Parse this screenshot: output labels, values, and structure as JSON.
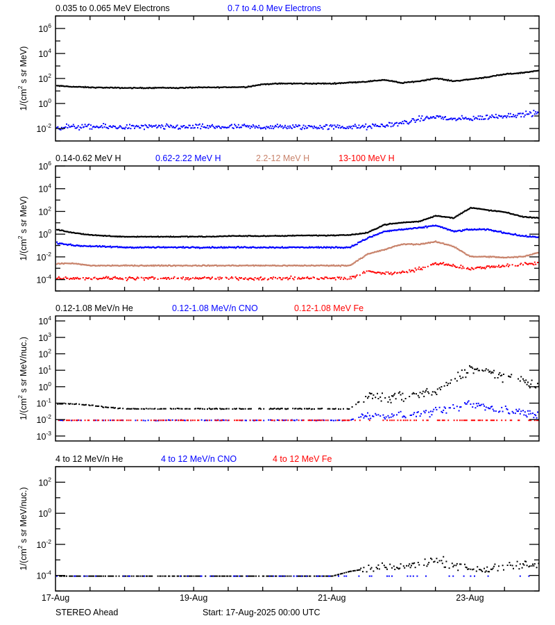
{
  "footer": {
    "spacecraft": "STEREO Ahead",
    "start": "Start: 17-Aug-2025 00:00 UTC"
  },
  "chart_data": [
    {
      "type": "scatter",
      "yscale": "log",
      "ylim": [
        0.001,
        10000000.0
      ],
      "xlim": [
        "2025-08-17T00:00",
        "2025-08-24T00:00"
      ],
      "ylabel": "1/(cm2 s sr MeV)",
      "ylabel_main": "1/(cm",
      "ylabel_sup": "2",
      "ylabel_rest": " s sr MeV)",
      "ytick_exponents": [
        6,
        4,
        2,
        0,
        -2
      ],
      "x": [
        "2025-08-17T00:00",
        "2025-08-17T06:00",
        "2025-08-17T12:00",
        "2025-08-17T18:00",
        "2025-08-18T00:00",
        "2025-08-18T06:00",
        "2025-08-18T12:00",
        "2025-08-18T18:00",
        "2025-08-19T00:00",
        "2025-08-19T06:00",
        "2025-08-19T12:00",
        "2025-08-19T18:00",
        "2025-08-20T00:00",
        "2025-08-20T06:00",
        "2025-08-20T12:00",
        "2025-08-20T18:00",
        "2025-08-21T00:00",
        "2025-08-21T06:00",
        "2025-08-21T12:00",
        "2025-08-21T18:00",
        "2025-08-22T00:00",
        "2025-08-22T06:00",
        "2025-08-22T12:00",
        "2025-08-22T18:00",
        "2025-08-23T00:00",
        "2025-08-23T06:00",
        "2025-08-23T12:00",
        "2025-08-23T18:00",
        "2025-08-24T00:00"
      ],
      "series": [
        {
          "name": "0.035 to 0.065 MeV Electrons",
          "color": "#000000",
          "values": [
            30,
            25,
            22,
            21,
            20,
            20,
            21,
            20,
            22,
            22,
            23,
            24,
            40,
            45,
            45,
            45,
            45,
            55,
            65,
            90,
            50,
            70,
            120,
            70,
            100,
            150,
            250,
            330,
            500
          ]
        },
        {
          "name": "0.7 to 4.0 Mev Electrons",
          "color": "#0000ff",
          "values": [
            0.015,
            0.015,
            0.015,
            0.015,
            0.015,
            0.015,
            0.015,
            0.015,
            0.015,
            0.015,
            0.015,
            0.015,
            0.015,
            0.015,
            0.015,
            0.015,
            0.015,
            0.015,
            0.015,
            0.02,
            0.03,
            0.06,
            0.1,
            0.06,
            0.07,
            0.09,
            0.12,
            0.15,
            0.2
          ]
        }
      ]
    },
    {
      "type": "scatter",
      "yscale": "log",
      "ylim": [
        1e-05,
        1000000.0
      ],
      "xlim": [
        "2025-08-17T00:00",
        "2025-08-24T00:00"
      ],
      "ylabel": "1/(cm2 s sr MeV)",
      "ylabel_main": "1/(cm",
      "ylabel_sup": "2",
      "ylabel_rest": " s sr MeV)",
      "ytick_exponents": [
        6,
        4,
        2,
        0,
        -2,
        -4
      ],
      "x": [
        "2025-08-17T00:00",
        "2025-08-17T06:00",
        "2025-08-17T12:00",
        "2025-08-17T18:00",
        "2025-08-18T00:00",
        "2025-08-18T06:00",
        "2025-08-18T12:00",
        "2025-08-18T18:00",
        "2025-08-19T00:00",
        "2025-08-19T06:00",
        "2025-08-19T12:00",
        "2025-08-19T18:00",
        "2025-08-20T00:00",
        "2025-08-20T06:00",
        "2025-08-20T12:00",
        "2025-08-20T18:00",
        "2025-08-21T00:00",
        "2025-08-21T06:00",
        "2025-08-21T12:00",
        "2025-08-21T18:00",
        "2025-08-22T00:00",
        "2025-08-22T06:00",
        "2025-08-22T12:00",
        "2025-08-22T18:00",
        "2025-08-23T00:00",
        "2025-08-23T06:00",
        "2025-08-23T12:00",
        "2025-08-23T18:00",
        "2025-08-24T00:00"
      ],
      "series": [
        {
          "name": "0.14-0.62 MeV H",
          "color": "#000000",
          "values": [
            3,
            1.5,
            1,
            0.8,
            0.7,
            0.7,
            0.7,
            0.7,
            0.7,
            0.7,
            0.8,
            0.8,
            0.8,
            0.8,
            0.9,
            0.9,
            0.9,
            1,
            1.5,
            8,
            12,
            15,
            50,
            30,
            250,
            150,
            100,
            40,
            30
          ]
        },
        {
          "name": "0.62-2.22 MeV H",
          "color": "#0000ff",
          "values": [
            0.2,
            0.12,
            0.1,
            0.09,
            0.08,
            0.08,
            0.08,
            0.08,
            0.08,
            0.08,
            0.08,
            0.08,
            0.08,
            0.08,
            0.08,
            0.08,
            0.08,
            0.08,
            0.5,
            2,
            3,
            4,
            7,
            2,
            3,
            3,
            1.5,
            0.8,
            0.6
          ]
        },
        {
          "name": "2.2-12 MeV H",
          "color": "#c8826a",
          "values": [
            0.003,
            0.003,
            0.002,
            0.002,
            0.002,
            0.002,
            0.002,
            0.002,
            0.002,
            0.002,
            0.002,
            0.002,
            0.002,
            0.002,
            0.002,
            0.002,
            0.002,
            0.002,
            0.02,
            0.05,
            0.15,
            0.15,
            0.25,
            0.1,
            0.012,
            0.012,
            0.01,
            0.012,
            0.03
          ]
        },
        {
          "name": "13-100 MeV H",
          "color": "#ff0000",
          "values": [
            0.00015,
            0.00015,
            0.00015,
            0.00015,
            0.00015,
            0.00015,
            0.00015,
            0.00015,
            0.00015,
            0.00015,
            0.00015,
            0.00015,
            0.00015,
            0.00015,
            0.00015,
            0.00015,
            0.00015,
            0.00015,
            0.0006,
            0.0004,
            0.0005,
            0.001,
            0.003,
            0.002,
            0.001,
            0.0015,
            0.002,
            0.0025,
            0.0035
          ]
        }
      ]
    },
    {
      "type": "scatter",
      "yscale": "log",
      "ylim": [
        0.0005,
        20000.0
      ],
      "xlim": [
        "2025-08-17T00:00",
        "2025-08-24T00:00"
      ],
      "ylabel": "1/(cm2 s sr MeV/nuc.)",
      "ylabel_main": "1/(cm",
      "ylabel_sup": "2",
      "ylabel_rest": " s sr MeV/nuc.)",
      "ytick_exponents": [
        4,
        3,
        2,
        1,
        0,
        -1,
        -2,
        -3
      ],
      "x": [
        "2025-08-17T00:00",
        "2025-08-17T06:00",
        "2025-08-17T12:00",
        "2025-08-17T18:00",
        "2025-08-18T00:00",
        "2025-08-18T06:00",
        "2025-08-18T12:00",
        "2025-08-18T18:00",
        "2025-08-19T00:00",
        "2025-08-19T06:00",
        "2025-08-19T12:00",
        "2025-08-19T18:00",
        "2025-08-20T00:00",
        "2025-08-20T06:00",
        "2025-08-20T12:00",
        "2025-08-20T18:00",
        "2025-08-21T00:00",
        "2025-08-21T06:00",
        "2025-08-21T12:00",
        "2025-08-21T18:00",
        "2025-08-22T00:00",
        "2025-08-22T06:00",
        "2025-08-22T12:00",
        "2025-08-22T18:00",
        "2025-08-23T00:00",
        "2025-08-23T06:00",
        "2025-08-23T12:00",
        "2025-08-23T18:00",
        "2025-08-24T00:00"
      ],
      "series": [
        {
          "name": "0.12-1.08 MeV/n He",
          "color": "#000000",
          "values": [
            0.1,
            0.1,
            0.08,
            0.06,
            0.05,
            0.05,
            0.05,
            0.05,
            0.05,
            0.05,
            0.05,
            0.05,
            0.05,
            0.05,
            0.05,
            0.05,
            0.05,
            0.05,
            0.3,
            0.2,
            0.3,
            0.4,
            0.5,
            3,
            13,
            8,
            5,
            2.5,
            1
          ]
        },
        {
          "name": "0.12-1.08 MeV/n CNO",
          "color": "#0000ff",
          "values": [
            0.01,
            0.01,
            0.01,
            0.01,
            0.01,
            0.01,
            0.01,
            0.01,
            0.01,
            0.01,
            0.01,
            0.01,
            0.01,
            0.01,
            0.01,
            0.01,
            0.01,
            0.01,
            0.02,
            0.02,
            0.02,
            0.025,
            0.03,
            0.05,
            0.1,
            0.06,
            0.04,
            0.03,
            0.02
          ]
        },
        {
          "name": "0.12-1.08 MeV Fe",
          "color": "#ff0000",
          "values": [
            0.01,
            0.01,
            0.01,
            0.01,
            0.01,
            0.01,
            0.01,
            0.01,
            0.01,
            0.01,
            0.01,
            0.01,
            0.01,
            0.01,
            0.01,
            0.01,
            0.01,
            0.01,
            0.01,
            0.01,
            0.01,
            0.01,
            0.01,
            0.01,
            0.01,
            0.01,
            0.01,
            0.01,
            0.01
          ]
        }
      ]
    },
    {
      "type": "scatter",
      "yscale": "log",
      "ylim": [
        1e-05,
        1000.0
      ],
      "xlim": [
        "2025-08-17T00:00",
        "2025-08-24T00:00"
      ],
      "ylabel": "1/(cm2 s sr MeV/nuc.)",
      "ylabel_main": "1/(cm",
      "ylabel_sup": "2",
      "ylabel_rest": " s sr MeV/nuc.)",
      "ytick_exponents": [
        2,
        0,
        -2,
        -4
      ],
      "xtick_labels": [
        "17-Aug",
        "19-Aug",
        "21-Aug",
        "23-Aug"
      ],
      "x": [
        "2025-08-17T00:00",
        "2025-08-17T06:00",
        "2025-08-17T12:00",
        "2025-08-17T18:00",
        "2025-08-18T00:00",
        "2025-08-18T06:00",
        "2025-08-18T12:00",
        "2025-08-18T18:00",
        "2025-08-19T00:00",
        "2025-08-19T06:00",
        "2025-08-19T12:00",
        "2025-08-19T18:00",
        "2025-08-20T00:00",
        "2025-08-20T06:00",
        "2025-08-20T12:00",
        "2025-08-20T18:00",
        "2025-08-21T00:00",
        "2025-08-21T06:00",
        "2025-08-21T12:00",
        "2025-08-21T18:00",
        "2025-08-22T00:00",
        "2025-08-22T06:00",
        "2025-08-22T12:00",
        "2025-08-22T18:00",
        "2025-08-23T00:00",
        "2025-08-23T06:00",
        "2025-08-23T12:00",
        "2025-08-23T18:00",
        "2025-08-24T00:00"
      ],
      "series": [
        {
          "name": "4 to 12 MeV/n He",
          "color": "#000000",
          "values": [
            0.0001,
            0.0001,
            0.0001,
            0.0001,
            0.0001,
            0.0001,
            0.0001,
            0.0001,
            0.0001,
            0.0001,
            0.0001,
            0.0001,
            0.0001,
            0.0001,
            0.0001,
            0.0001,
            0.0001,
            0.0002,
            0.0003,
            0.0004,
            0.0004,
            0.0006,
            0.001,
            0.0006,
            0.0003,
            0.00025,
            0.0004,
            0.0005,
            0.0006
          ]
        },
        {
          "name": "4 to 12 MeV/n CNO",
          "color": "#0000ff",
          "values": [
            0.0001,
            0.0001,
            0.0001,
            0.0001,
            0.0001,
            0.0001,
            0.0001,
            0.0001,
            0.0001,
            0.0001,
            0.0001,
            0.0001,
            0.0001,
            0.0001,
            0.0001,
            0.0001,
            0.0001,
            0.0001,
            0.0001,
            0.0001,
            0.0001,
            0.0001,
            0.0001,
            0.0001,
            0.0001,
            0.0001,
            0.0001,
            0.0001,
            0.0001
          ]
        },
        {
          "name": "4 to 12 MeV Fe",
          "color": "#ff0000",
          "values": [
            1.2e-05,
            1.2e-05,
            1.2e-05,
            1.2e-05,
            1.2e-05,
            1.2e-05,
            1.2e-05,
            1.2e-05,
            1.2e-05,
            1.2e-05,
            1.2e-05,
            1.2e-05,
            1.2e-05,
            1.2e-05,
            1.2e-05,
            1.2e-05,
            1.2e-05,
            1.2e-05,
            1.2e-05,
            1.2e-05,
            1.2e-05,
            1.2e-05,
            1.2e-05,
            1.2e-05,
            1.2e-05,
            1.2e-05,
            1.2e-05,
            1.2e-05,
            1.2e-05
          ]
        }
      ]
    }
  ]
}
